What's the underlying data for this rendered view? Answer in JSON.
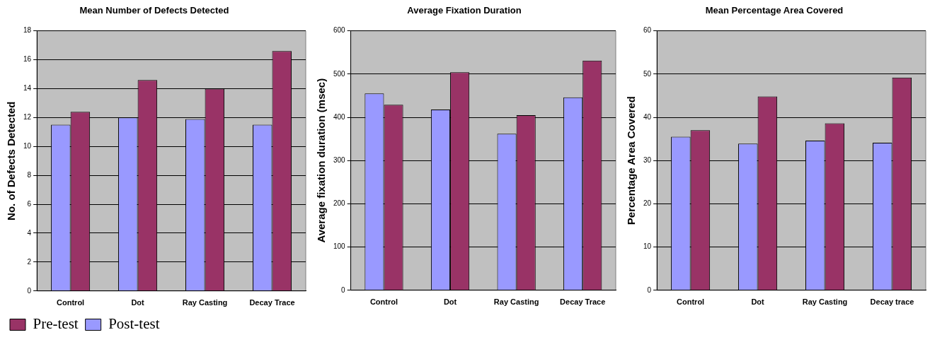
{
  "chart_data": [
    {
      "type": "bar",
      "title": "Mean Number of Defects Detected",
      "ylabel": "No. of Defects Detected",
      "categories": [
        "Control",
        "Dot",
        "Ray Casting",
        "Decay Trace"
      ],
      "series": [
        {
          "name": "Post-test",
          "color": "#9999ff",
          "values": [
            11.5,
            12,
            11.9,
            11.5
          ]
        },
        {
          "name": "Pre-test",
          "color": "#993366",
          "values": [
            12.4,
            14.6,
            14,
            16.6
          ]
        }
      ],
      "ylim": [
        0,
        18
      ],
      "yticks": [
        0,
        2,
        4,
        6,
        8,
        10,
        12,
        14,
        16,
        18
      ],
      "grid": "y",
      "legend": "bottom"
    },
    {
      "type": "bar",
      "title": "Average Fixation Duration",
      "ylabel": "Average fixation duration (msec)",
      "categories": [
        "Control",
        "Dot",
        "Ray Casting",
        "Decay Trace"
      ],
      "series": [
        {
          "color": "#9999ff",
          "values": [
            455,
            418,
            362,
            446
          ]
        },
        {
          "color": "#993366",
          "values": [
            429,
            504,
            405,
            531
          ]
        }
      ],
      "ylim": [
        0,
        600
      ],
      "yticks": [
        0,
        100,
        200,
        300,
        400,
        500,
        600
      ],
      "grid": "y"
    },
    {
      "type": "bar",
      "title": "Mean Percentage Area Covered",
      "ylabel": "Percentage Area Covered",
      "categories": [
        "Control",
        "Dot",
        "Ray Casting",
        "Decay trace"
      ],
      "series": [
        {
          "color": "#9999ff",
          "values": [
            35.5,
            33.9,
            34.6,
            34.1
          ]
        },
        {
          "color": "#993366",
          "values": [
            37,
            44.8,
            38.6,
            49.2
          ]
        }
      ],
      "ylim": [
        0,
        60
      ],
      "yticks": [
        0,
        10,
        20,
        30,
        40,
        50,
        60
      ],
      "grid": "y"
    }
  ]
}
